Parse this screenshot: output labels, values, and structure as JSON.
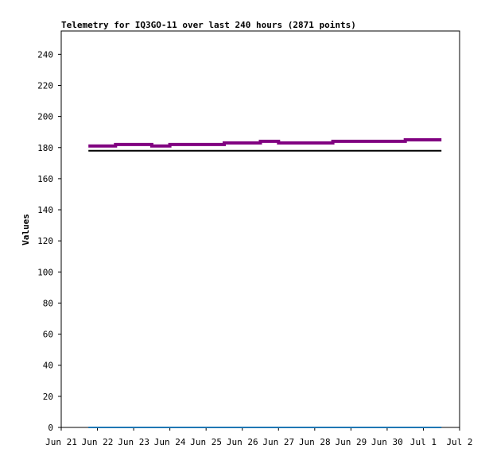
{
  "chart_data": {
    "type": "line",
    "title": "Telemetry for IQ3GO-11 over last 240 hours (2871 points)",
    "xlabel": "",
    "ylabel": "Values",
    "xlim": [
      "2025-06-21",
      "2025-07-02"
    ],
    "ylim": [
      0,
      255
    ],
    "grid": false,
    "x_ticks": [
      "Jun 21",
      "Jun 22",
      "Jun 23",
      "Jun 24",
      "Jun 25",
      "Jun 26",
      "Jun 27",
      "Jun 28",
      "Jun 29",
      "Jun 30",
      "Jul 1",
      "Jul 2"
    ],
    "y_ticks": [
      0,
      20,
      40,
      60,
      80,
      100,
      120,
      140,
      160,
      180,
      200,
      220,
      240
    ],
    "series": [
      {
        "color": "#800080",
        "points": [
          [
            "2025-06-21T18:00",
            181
          ],
          [
            "2025-06-22T06:00",
            181
          ],
          [
            "2025-06-22T12:00",
            182
          ],
          [
            "2025-06-23T00:00",
            182
          ],
          [
            "2025-06-23T12:00",
            181
          ],
          [
            "2025-06-24T00:00",
            182
          ],
          [
            "2025-06-24T12:00",
            182
          ],
          [
            "2025-06-25T00:00",
            182
          ],
          [
            "2025-06-25T12:00",
            183
          ],
          [
            "2025-06-26T00:00",
            183
          ],
          [
            "2025-06-26T12:00",
            184
          ],
          [
            "2025-06-27T00:00",
            183
          ],
          [
            "2025-06-27T12:00",
            183
          ],
          [
            "2025-06-28T00:00",
            183
          ],
          [
            "2025-06-28T12:00",
            184
          ],
          [
            "2025-06-29T00:00",
            184
          ],
          [
            "2025-06-29T12:00",
            184
          ],
          [
            "2025-06-30T00:00",
            184
          ],
          [
            "2025-06-30T12:00",
            185
          ],
          [
            "2025-07-01T00:00",
            185
          ],
          [
            "2025-07-01T12:00",
            185
          ]
        ]
      },
      {
        "color": "#000000",
        "points": [
          [
            "2025-06-21T18:00",
            178
          ],
          [
            "2025-07-01T12:00",
            178
          ]
        ]
      },
      {
        "color": "#1f77b4",
        "points": [
          [
            "2025-06-21T18:00",
            0
          ],
          [
            "2025-07-01T12:00",
            0
          ]
        ]
      }
    ]
  }
}
